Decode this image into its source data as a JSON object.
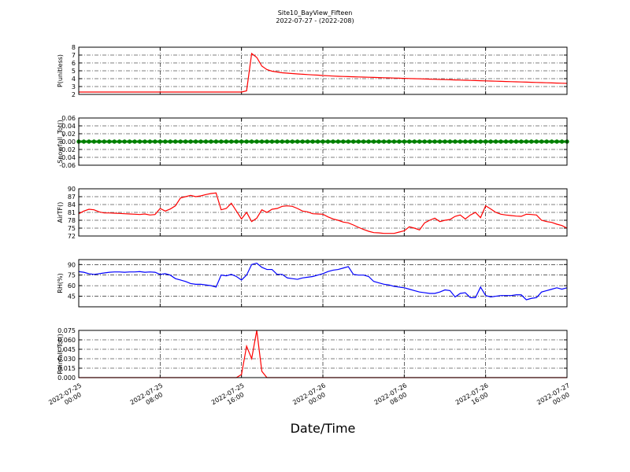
{
  "title": "Site10_BayView_Fifteen",
  "subtitle": "2022-07-27 - (2022-208)",
  "xlabel": "Date/Time",
  "xlim": [
    "2022-07-25 00:00",
    "2022-07-27 00:00"
  ],
  "xticks": [
    {
      "value": "2022-07-25 00:00",
      "label": [
        "2022-07-25",
        "00:00"
      ]
    },
    {
      "value": "2022-07-25 08:00",
      "label": [
        "2022-07-25",
        "08:00"
      ]
    },
    {
      "value": "2022-07-25 16:00",
      "label": [
        "2022-07-25",
        "16:00"
      ]
    },
    {
      "value": "2022-07-26 00:00",
      "label": [
        "2022-07-26",
        "00:00"
      ]
    },
    {
      "value": "2022-07-26 08:00",
      "label": [
        "2022-07-26",
        "08:00"
      ]
    },
    {
      "value": "2022-07-26 16:00",
      "label": [
        "2022-07-26",
        "16:00"
      ]
    },
    {
      "value": "2022-07-27 00:00",
      "label": [
        "2022-07-27",
        "00:00"
      ]
    }
  ],
  "x": [
    "2022-07-25 00:00",
    "2022-07-25 00:30",
    "2022-07-25 01:00",
    "2022-07-25 01:30",
    "2022-07-25 02:00",
    "2022-07-25 02:30",
    "2022-07-25 03:00",
    "2022-07-25 03:30",
    "2022-07-25 04:00",
    "2022-07-25 04:30",
    "2022-07-25 05:00",
    "2022-07-25 05:30",
    "2022-07-25 06:00",
    "2022-07-25 06:30",
    "2022-07-25 07:00",
    "2022-07-25 07:30",
    "2022-07-25 08:00",
    "2022-07-25 08:30",
    "2022-07-25 09:00",
    "2022-07-25 09:30",
    "2022-07-25 10:00",
    "2022-07-25 10:30",
    "2022-07-25 11:00",
    "2022-07-25 11:30",
    "2022-07-25 12:00",
    "2022-07-25 12:30",
    "2022-07-25 13:00",
    "2022-07-25 13:30",
    "2022-07-25 14:00",
    "2022-07-25 14:30",
    "2022-07-25 15:00",
    "2022-07-25 15:30",
    "2022-07-25 16:00",
    "2022-07-25 16:30",
    "2022-07-25 17:00",
    "2022-07-25 17:30",
    "2022-07-25 18:00",
    "2022-07-25 18:30",
    "2022-07-25 19:00",
    "2022-07-25 19:30",
    "2022-07-25 20:00",
    "2022-07-25 20:30",
    "2022-07-25 21:00",
    "2022-07-25 21:30",
    "2022-07-25 22:00",
    "2022-07-25 22:30",
    "2022-07-25 23:00",
    "2022-07-25 23:30",
    "2022-07-26 00:00",
    "2022-07-26 00:30",
    "2022-07-26 01:00",
    "2022-07-26 01:30",
    "2022-07-26 02:00",
    "2022-07-26 02:30",
    "2022-07-26 03:00",
    "2022-07-26 03:30",
    "2022-07-26 04:00",
    "2022-07-26 04:30",
    "2022-07-26 05:00",
    "2022-07-26 05:30",
    "2022-07-26 06:00",
    "2022-07-26 06:30",
    "2022-07-26 07:00",
    "2022-07-26 07:30",
    "2022-07-26 08:00",
    "2022-07-26 08:30",
    "2022-07-26 09:00",
    "2022-07-26 09:30",
    "2022-07-26 10:00",
    "2022-07-26 10:30",
    "2022-07-26 11:00",
    "2022-07-26 11:30",
    "2022-07-26 12:00",
    "2022-07-26 12:30",
    "2022-07-26 13:00",
    "2022-07-26 13:30",
    "2022-07-26 14:00",
    "2022-07-26 14:30",
    "2022-07-26 15:00",
    "2022-07-26 15:30",
    "2022-07-26 16:00",
    "2022-07-26 16:30",
    "2022-07-26 17:00",
    "2022-07-26 17:30",
    "2022-07-26 18:00",
    "2022-07-26 18:30",
    "2022-07-26 19:00",
    "2022-07-26 19:30",
    "2022-07-26 20:00",
    "2022-07-26 20:30",
    "2022-07-26 21:00",
    "2022-07-26 21:30",
    "2022-07-26 22:00",
    "2022-07-26 22:30",
    "2022-07-26 23:00",
    "2022-07-26 23:30",
    "2022-07-27 00:00"
  ],
  "chart_data": [
    {
      "type": "line",
      "ylabel": "P(unitless)",
      "ylim": [
        2,
        8
      ],
      "yticks": [
        2,
        3,
        4,
        5,
        6,
        7,
        8
      ],
      "grid": true,
      "series": [
        {
          "color": "#ff0000",
          "values": [
            2.3,
            2.3,
            2.3,
            2.3,
            2.3,
            2.3,
            2.3,
            2.3,
            2.3,
            2.3,
            2.3,
            2.3,
            2.3,
            2.3,
            2.3,
            2.3,
            2.3,
            2.3,
            2.3,
            2.3,
            2.3,
            2.3,
            2.3,
            2.3,
            2.3,
            2.3,
            2.3,
            2.3,
            2.3,
            2.3,
            2.3,
            2.3,
            2.3,
            2.45,
            7.2,
            6.7,
            5.6,
            5.15,
            4.95,
            4.85,
            4.75,
            4.7,
            4.65,
            4.6,
            4.56,
            4.52,
            4.48,
            4.45,
            4.4,
            4.37,
            4.33,
            4.3,
            4.28,
            4.26,
            4.24,
            4.22,
            4.2,
            4.18,
            4.16,
            4.14,
            4.12,
            4.1,
            4.08,
            4.06,
            4.04,
            4.02,
            4,
            3.98,
            3.96,
            3.94,
            3.92,
            3.9,
            3.88,
            3.86,
            3.84,
            3.82,
            3.8,
            3.78,
            3.76,
            3.74,
            3.72,
            3.7,
            3.68,
            3.66,
            3.64,
            3.62,
            3.6,
            3.58,
            3.56,
            3.54,
            3.52,
            3.5,
            3.48,
            3.46,
            3.44,
            3.42,
            3.4
          ]
        }
      ]
    },
    {
      "type": "line",
      "ylabel": "Snowfall_Tot()",
      "ylim": [
        -0.06,
        0.06
      ],
      "grid": true,
      "marker": true,
      "yticks": [
        {
          "value": -0.06,
          "label": "-0.06"
        },
        {
          "value": -0.04,
          "label": "-0.04"
        },
        {
          "value": -0.02,
          "label": "-0.02"
        },
        {
          "value": 0,
          "label": "0.00"
        },
        {
          "value": 0.02,
          "label": "0.02"
        },
        {
          "value": 0.04,
          "label": "0.04"
        },
        {
          "value": 0.06,
          "label": "0.06"
        }
      ],
      "series": [
        {
          "color": "#008000",
          "values": [
            0,
            0,
            0,
            0,
            0,
            0,
            0,
            0,
            0,
            0,
            0,
            0,
            0,
            0,
            0,
            0,
            0,
            0,
            0,
            0,
            0,
            0,
            0,
            0,
            0,
            0,
            0,
            0,
            0,
            0,
            0,
            0,
            0,
            0,
            0,
            0,
            0,
            0,
            0,
            0,
            0,
            0,
            0,
            0,
            0,
            0,
            0,
            0,
            0,
            0,
            0,
            0,
            0,
            0,
            0,
            0,
            0,
            0,
            0,
            0,
            0,
            0,
            0,
            0,
            0,
            0,
            0,
            0,
            0,
            0,
            0,
            0,
            0,
            0,
            0,
            0,
            0,
            0,
            0,
            0,
            0,
            0,
            0,
            0,
            0,
            0,
            0,
            0,
            0,
            0,
            0,
            0,
            0,
            0,
            0,
            0,
            0
          ]
        }
      ]
    },
    {
      "type": "line",
      "ylabel": "AirTF()",
      "ylim": [
        72,
        90
      ],
      "yticks": [
        72,
        75,
        78,
        81,
        84,
        87,
        90
      ],
      "grid": true,
      "series": [
        {
          "color": "#ff0000",
          "values": [
            80.5,
            81.5,
            82.2,
            82,
            81.2,
            80.8,
            80.8,
            80.7,
            80.6,
            80.5,
            80.4,
            80.3,
            80.2,
            80.4,
            80,
            80.2,
            82.5,
            81.5,
            82.3,
            83.5,
            86.5,
            87,
            87.5,
            87,
            87.3,
            87.8,
            88.2,
            88.4,
            82,
            82.5,
            84.5,
            81.5,
            78.5,
            81,
            77.5,
            78.8,
            82,
            81,
            82.2,
            82.5,
            83.3,
            83.5,
            83.3,
            82.5,
            81.5,
            81.2,
            80.5,
            80.4,
            80.3,
            79.3,
            78.5,
            78,
            77.3,
            77,
            76.2,
            75.3,
            74.5,
            73.8,
            73.3,
            73.2,
            73,
            73,
            73,
            73.5,
            74,
            75.5,
            75,
            74.3,
            77,
            78,
            78.8,
            77.5,
            78,
            78.3,
            79.5,
            80,
            78.5,
            80,
            81,
            79,
            83.5,
            82.3,
            81,
            80.3,
            80,
            79.8,
            79.6,
            79.5,
            80.3,
            80.2,
            80,
            78,
            77.5,
            77.2,
            76.5,
            76,
            75
          ]
        }
      ]
    },
    {
      "type": "line",
      "ylabel": "RH(%)",
      "ylim": [
        30,
        97
      ],
      "yticks": [
        45,
        60,
        75,
        90
      ],
      "grid": true,
      "series": [
        {
          "color": "#0000ff",
          "values": [
            80,
            79,
            77,
            76,
            77,
            78,
            79,
            79.5,
            79.5,
            79,
            79.5,
            79.5,
            80,
            79,
            79.5,
            79,
            76,
            77,
            75,
            70,
            68,
            66,
            63,
            62,
            62,
            61,
            60,
            58,
            75,
            74,
            76,
            73,
            68,
            75,
            90,
            92,
            86,
            83,
            83,
            76,
            76,
            71,
            70,
            69,
            71,
            72,
            73,
            75,
            77,
            80,
            82,
            83,
            85,
            87,
            76,
            75,
            75,
            73,
            66,
            64,
            62,
            61,
            59,
            58,
            57,
            55,
            53,
            51,
            50,
            49,
            49,
            51,
            54,
            53,
            44,
            49,
            50,
            43,
            43,
            58,
            46,
            44,
            45,
            46,
            46,
            46,
            47,
            47,
            40,
            42,
            43,
            51,
            53,
            55,
            57,
            55,
            57
          ]
        }
      ]
    },
    {
      "type": "line",
      "ylabel": "Rainfall_Tot()",
      "ylim": [
        0,
        0.075
      ],
      "grid": true,
      "yticks": [
        {
          "value": 0,
          "label": "0.000"
        },
        {
          "value": 0.015,
          "label": "0.015"
        },
        {
          "value": 0.03,
          "label": "0.030"
        },
        {
          "value": 0.045,
          "label": "0.045"
        },
        {
          "value": 0.06,
          "label": "0.060"
        },
        {
          "value": 0.075,
          "label": "0.075"
        }
      ],
      "series": [
        {
          "color": "#ff0000",
          "values": [
            0,
            0,
            0,
            0,
            0,
            0,
            0,
            0,
            0,
            0,
            0,
            0,
            0,
            0,
            0,
            0,
            0,
            0,
            0,
            0,
            0,
            0,
            0,
            0,
            0,
            0,
            0,
            0,
            0,
            0,
            0,
            0,
            0.005,
            0.05,
            0.03,
            0.075,
            0.01,
            0,
            0,
            0,
            0,
            0,
            0,
            0,
            0,
            0,
            0,
            0,
            0,
            0,
            0,
            0,
            0,
            0,
            0,
            0,
            0,
            0,
            0,
            0,
            0,
            0,
            0,
            0,
            0,
            0,
            0,
            0,
            0,
            0,
            0,
            0,
            0,
            0,
            0,
            0,
            0,
            0,
            0,
            0,
            0,
            0,
            0,
            0,
            0,
            0,
            0,
            0,
            0,
            0,
            0,
            0,
            0,
            0,
            0,
            0,
            0
          ]
        }
      ]
    }
  ]
}
